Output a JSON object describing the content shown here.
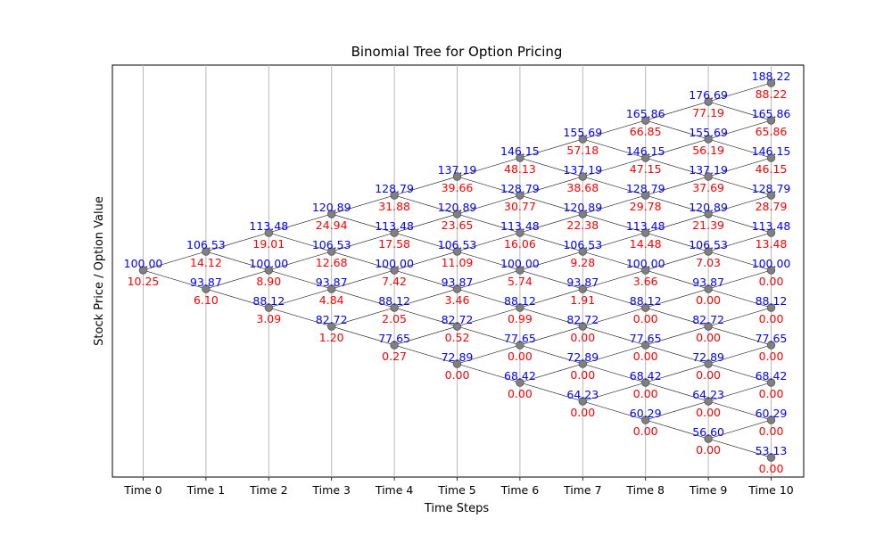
{
  "chart_data": {
    "type": "binomial-tree",
    "title": "Binomial Tree for Option Pricing",
    "xlabel": "Time Steps",
    "ylabel": "Stock Price / Option Value",
    "grid": "vertical",
    "x_tick_labels": [
      "Time 0",
      "Time 1",
      "Time 2",
      "Time 3",
      "Time 4",
      "Time 5",
      "Time 6",
      "Time 7",
      "Time 8",
      "Time 9",
      "Time 10"
    ],
    "colors": {
      "price": "#0000ff",
      "option_value": "#ff0000",
      "node": "#808080",
      "edge": "#000000",
      "grid": "#b0b0b0"
    },
    "steps": [
      {
        "step": 0,
        "stock_prices": [
          "100.00"
        ],
        "option_values": [
          "10.25"
        ]
      },
      {
        "step": 1,
        "stock_prices": [
          "106.53",
          "93.87"
        ],
        "option_values": [
          "14.12",
          "6.10"
        ]
      },
      {
        "step": 2,
        "stock_prices": [
          "113.48",
          "100.00",
          "88.12"
        ],
        "option_values": [
          "19.01",
          "8.90",
          "3.09"
        ]
      },
      {
        "step": 3,
        "stock_prices": [
          "120.89",
          "106.53",
          "93.87",
          "82.72"
        ],
        "option_values": [
          "24.94",
          "12.68",
          "4.84",
          "1.20"
        ]
      },
      {
        "step": 4,
        "stock_prices": [
          "128.79",
          "113.48",
          "100.00",
          "88.12",
          "77.65"
        ],
        "option_values": [
          "31.88",
          "17.58",
          "7.42",
          "2.05",
          "0.27"
        ]
      },
      {
        "step": 5,
        "stock_prices": [
          "137.19",
          "120.89",
          "106.53",
          "93.87",
          "82.72",
          "72.89"
        ],
        "option_values": [
          "39.66",
          "23.65",
          "11.09",
          "3.46",
          "0.52",
          "0.00"
        ]
      },
      {
        "step": 6,
        "stock_prices": [
          "146.15",
          "128.79",
          "113.48",
          "100.00",
          "88.12",
          "77.65",
          "68.42"
        ],
        "option_values": [
          "48.13",
          "30.77",
          "16.06",
          "5.74",
          "0.99",
          "0.00",
          "0.00"
        ]
      },
      {
        "step": 7,
        "stock_prices": [
          "155.69",
          "137.19",
          "120.89",
          "106.53",
          "93.87",
          "82.72",
          "72.89",
          "64.23"
        ],
        "option_values": [
          "57.18",
          "38.68",
          "22.38",
          "9.28",
          "1.91",
          "0.00",
          "0.00",
          "0.00"
        ]
      },
      {
        "step": 8,
        "stock_prices": [
          "165.86",
          "146.15",
          "128.79",
          "113.48",
          "100.00",
          "88.12",
          "77.65",
          "68.42",
          "60.29"
        ],
        "option_values": [
          "66.85",
          "47.15",
          "29.78",
          "14.48",
          "3.66",
          "0.00",
          "0.00",
          "0.00",
          "0.00"
        ]
      },
      {
        "step": 9,
        "stock_prices": [
          "176.69",
          "155.69",
          "137.19",
          "120.89",
          "106.53",
          "93.87",
          "82.72",
          "72.89",
          "64.23",
          "56.60"
        ],
        "option_values": [
          "77.19",
          "56.19",
          "37.69",
          "21.39",
          "7.03",
          "0.00",
          "0.00",
          "0.00",
          "0.00",
          "0.00"
        ]
      },
      {
        "step": 10,
        "stock_prices": [
          "188.22",
          "165.86",
          "146.15",
          "128.79",
          "113.48",
          "100.00",
          "88.12",
          "77.65",
          "68.42",
          "60.29",
          "53.13"
        ],
        "option_values": [
          "88.22",
          "65.86",
          "46.15",
          "28.79",
          "13.48",
          "0.00",
          "0.00",
          "0.00",
          "0.00",
          "0.00",
          "0.00"
        ]
      }
    ]
  }
}
